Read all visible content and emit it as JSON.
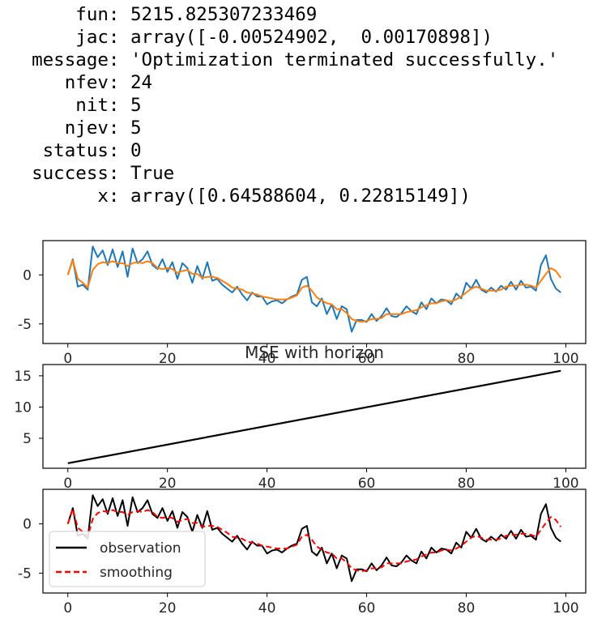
{
  "output": {
    "lines": [
      {
        "key": "      fun",
        "value": "5215.825307233469"
      },
      {
        "key": "      jac",
        "value": "array([-0.00524902,  0.00170898])"
      },
      {
        "key": "  message",
        "value": "'Optimization terminated successfully.'"
      },
      {
        "key": "     nfev",
        "value": "24"
      },
      {
        "key": "      nit",
        "value": "5"
      },
      {
        "key": "     njev",
        "value": "5"
      },
      {
        "key": "   status",
        "value": "0"
      },
      {
        "key": "  success",
        "value": "True"
      },
      {
        "key": "        x",
        "value": "array([0.64588604, 0.22815149])"
      }
    ]
  },
  "chart_data": [
    {
      "type": "line",
      "title": "",
      "xlim": [
        -5,
        104
      ],
      "ylim": [
        -7,
        3.5
      ],
      "xticks": [
        0,
        20,
        40,
        60,
        80,
        100
      ],
      "yticks": [
        0,
        -5
      ],
      "grid": false,
      "x": [
        0,
        1,
        2,
        3,
        4,
        5,
        6,
        7,
        8,
        9,
        10,
        11,
        12,
        13,
        14,
        15,
        16,
        17,
        18,
        19,
        20,
        21,
        22,
        23,
        24,
        25,
        26,
        27,
        28,
        29,
        30,
        31,
        32,
        33,
        34,
        35,
        36,
        37,
        38,
        39,
        40,
        41,
        42,
        43,
        44,
        45,
        46,
        47,
        48,
        49,
        50,
        51,
        52,
        53,
        54,
        55,
        56,
        57,
        58,
        59,
        60,
        61,
        62,
        63,
        64,
        65,
        66,
        67,
        68,
        69,
        70,
        71,
        72,
        73,
        74,
        75,
        76,
        77,
        78,
        79,
        80,
        81,
        82,
        83,
        84,
        85,
        86,
        87,
        88,
        89,
        90,
        91,
        92,
        93,
        94,
        95,
        96,
        97,
        98,
        99
      ],
      "series": [
        {
          "color": "#1f77b4",
          "values": [
            0.0,
            1.6,
            -1.2,
            -1.0,
            -1.5,
            2.9,
            1.8,
            2.5,
            1.0,
            2.6,
            0.8,
            2.4,
            -0.2,
            2.7,
            1.2,
            1.6,
            2.4,
            1.0,
            0.6,
            1.6,
            0.3,
            1.3,
            -0.4,
            1.2,
            0.7,
            -0.8,
            0.9,
            -0.4,
            1.3,
            -0.6,
            -0.4,
            -1.0,
            -1.4,
            -1.8,
            -1.2,
            -2.0,
            -2.6,
            -1.8,
            -2.2,
            -2.2,
            -3.0,
            -2.7,
            -2.6,
            -2.9,
            -2.5,
            -2.2,
            -2.0,
            -0.5,
            -0.2,
            -2.8,
            -3.2,
            -2.4,
            -4.0,
            -3.0,
            -4.5,
            -3.2,
            -3.5,
            -5.8,
            -4.6,
            -4.6,
            -4.8,
            -4.0,
            -4.7,
            -4.2,
            -3.4,
            -4.2,
            -4.3,
            -3.9,
            -3.2,
            -3.7,
            -4.0,
            -2.8,
            -3.5,
            -2.4,
            -2.9,
            -2.5,
            -2.6,
            -3.0,
            -1.9,
            -2.4,
            -0.8,
            -1.4,
            -0.5,
            -1.5,
            -1.8,
            -1.3,
            -1.7,
            -1.1,
            -1.5,
            -0.7,
            -1.5,
            -0.6,
            -1.3,
            -1.2,
            -1.6,
            1.0,
            2.0,
            -0.4,
            -1.4,
            -1.8
          ]
        },
        {
          "color": "#ff7f0e",
          "values": [
            0.0,
            1.5,
            -0.4,
            -0.8,
            -1.3,
            0.5,
            1.1,
            1.3,
            1.2,
            1.4,
            1.2,
            1.2,
            0.9,
            1.2,
            1.3,
            1.2,
            1.4,
            1.2,
            0.7,
            0.6,
            0.7,
            0.6,
            0.2,
            0.4,
            0.5,
            0.1,
            0.1,
            -0.3,
            -0.2,
            -0.2,
            -0.3,
            -0.6,
            -0.9,
            -1.3,
            -1.4,
            -1.5,
            -1.8,
            -1.9,
            -2.0,
            -2.2,
            -2.3,
            -2.4,
            -2.5,
            -2.5,
            -2.5,
            -2.3,
            -2.1,
            -1.3,
            -1.1,
            -1.6,
            -2.3,
            -2.6,
            -2.9,
            -3.0,
            -3.5,
            -3.5,
            -3.9,
            -4.5,
            -4.7,
            -4.8,
            -4.7,
            -4.5,
            -4.5,
            -4.4,
            -4.0,
            -4.0,
            -4.0,
            -4.0,
            -3.8,
            -3.7,
            -3.6,
            -3.3,
            -3.1,
            -2.9,
            -2.9,
            -2.7,
            -2.6,
            -2.7,
            -2.5,
            -2.2,
            -1.8,
            -1.4,
            -1.2,
            -1.4,
            -1.6,
            -1.6,
            -1.6,
            -1.5,
            -1.2,
            -1.1,
            -1.1,
            -1.0,
            -1.0,
            -1.1,
            -1.3,
            -0.6,
            0.1,
            0.7,
            0.4,
            -0.3
          ]
        }
      ]
    },
    {
      "type": "line",
      "title": "MSE with horizon",
      "xlim": [
        -5,
        104
      ],
      "ylim": [
        0.2,
        16.8
      ],
      "xticks": [
        0,
        20,
        40,
        60,
        80,
        100
      ],
      "yticks": [
        5,
        10,
        15
      ],
      "grid": false,
      "x": [
        0,
        99
      ],
      "series": [
        {
          "color": "#000000",
          "values": [
            1.0,
            15.8
          ]
        }
      ]
    },
    {
      "type": "line",
      "title": "",
      "xlim": [
        -5,
        104
      ],
      "ylim": [
        -7,
        3.5
      ],
      "xticks": [
        0,
        20,
        40,
        60,
        80,
        100
      ],
      "yticks": [
        0,
        -5
      ],
      "grid": false,
      "legend": "lower-left",
      "x": [
        0,
        1,
        2,
        3,
        4,
        5,
        6,
        7,
        8,
        9,
        10,
        11,
        12,
        13,
        14,
        15,
        16,
        17,
        18,
        19,
        20,
        21,
        22,
        23,
        24,
        25,
        26,
        27,
        28,
        29,
        30,
        31,
        32,
        33,
        34,
        35,
        36,
        37,
        38,
        39,
        40,
        41,
        42,
        43,
        44,
        45,
        46,
        47,
        48,
        49,
        50,
        51,
        52,
        53,
        54,
        55,
        56,
        57,
        58,
        59,
        60,
        61,
        62,
        63,
        64,
        65,
        66,
        67,
        68,
        69,
        70,
        71,
        72,
        73,
        74,
        75,
        76,
        77,
        78,
        79,
        80,
        81,
        82,
        83,
        84,
        85,
        86,
        87,
        88,
        89,
        90,
        91,
        92,
        93,
        94,
        95,
        96,
        97,
        98,
        99
      ],
      "series": [
        {
          "name": "observation",
          "color": "#000000",
          "dash": "solid",
          "values": [
            0.0,
            1.6,
            -1.2,
            -1.0,
            -1.5,
            2.9,
            1.8,
            2.5,
            1.0,
            2.6,
            0.8,
            2.4,
            -0.2,
            2.7,
            1.2,
            1.6,
            2.4,
            1.0,
            0.6,
            1.6,
            0.3,
            1.3,
            -0.4,
            1.2,
            0.7,
            -0.8,
            0.9,
            -0.4,
            1.3,
            -0.6,
            -0.4,
            -1.0,
            -1.4,
            -1.8,
            -1.2,
            -2.0,
            -2.6,
            -1.8,
            -2.2,
            -2.2,
            -3.0,
            -2.7,
            -2.6,
            -2.9,
            -2.5,
            -2.2,
            -2.0,
            -0.5,
            -0.2,
            -2.8,
            -3.2,
            -2.4,
            -4.0,
            -3.0,
            -4.5,
            -3.2,
            -3.5,
            -5.8,
            -4.6,
            -4.6,
            -4.8,
            -4.0,
            -4.7,
            -4.2,
            -3.4,
            -4.2,
            -4.3,
            -3.9,
            -3.2,
            -3.7,
            -4.0,
            -2.8,
            -3.5,
            -2.4,
            -2.9,
            -2.5,
            -2.6,
            -3.0,
            -1.9,
            -2.4,
            -0.8,
            -1.4,
            -0.5,
            -1.5,
            -1.8,
            -1.3,
            -1.7,
            -1.1,
            -1.5,
            -0.7,
            -1.5,
            -0.6,
            -1.3,
            -1.2,
            -1.6,
            1.0,
            2.0,
            -0.4,
            -1.4,
            -1.8
          ]
        },
        {
          "name": "smoothing",
          "color": "#ff0000",
          "dash": "dashed",
          "values": [
            0.0,
            1.5,
            -0.4,
            -0.8,
            -1.3,
            0.5,
            1.1,
            1.3,
            1.2,
            1.4,
            1.2,
            1.2,
            0.9,
            1.2,
            1.3,
            1.2,
            1.4,
            1.2,
            0.7,
            0.6,
            0.7,
            0.6,
            0.2,
            0.4,
            0.5,
            0.1,
            0.1,
            -0.3,
            -0.2,
            -0.2,
            -0.3,
            -0.6,
            -0.9,
            -1.3,
            -1.4,
            -1.5,
            -1.8,
            -1.9,
            -2.0,
            -2.2,
            -2.3,
            -2.4,
            -2.5,
            -2.5,
            -2.5,
            -2.3,
            -2.1,
            -1.3,
            -1.1,
            -1.6,
            -2.3,
            -2.6,
            -2.9,
            -3.0,
            -3.5,
            -3.5,
            -3.9,
            -4.5,
            -4.7,
            -4.8,
            -4.7,
            -4.5,
            -4.5,
            -4.4,
            -4.0,
            -4.0,
            -4.0,
            -4.0,
            -3.8,
            -3.7,
            -3.6,
            -3.3,
            -3.1,
            -2.9,
            -2.9,
            -2.7,
            -2.6,
            -2.7,
            -2.5,
            -2.2,
            -1.8,
            -1.4,
            -1.2,
            -1.4,
            -1.6,
            -1.6,
            -1.6,
            -1.5,
            -1.2,
            -1.1,
            -1.1,
            -1.0,
            -1.0,
            -1.1,
            -1.3,
            -0.6,
            0.1,
            0.7,
            0.4,
            -0.3
          ]
        }
      ]
    }
  ]
}
